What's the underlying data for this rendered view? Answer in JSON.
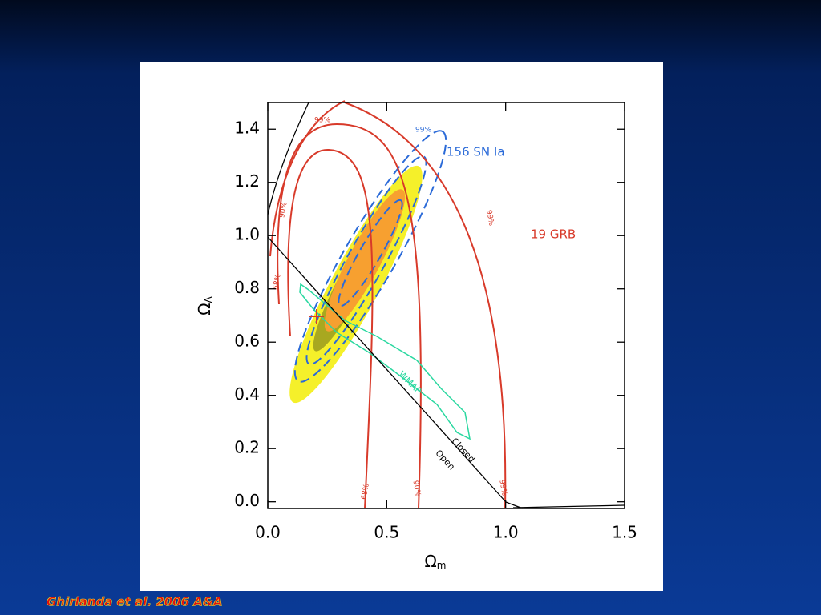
{
  "chart_data": {
    "type": "contour",
    "xlabel": {
      "symbol": "Ω",
      "subscript": "m"
    },
    "ylabel": {
      "symbol": "Ω",
      "subscript": "Λ"
    },
    "xlim": [
      0,
      1.5
    ],
    "ylim": [
      -0.025,
      1.5
    ],
    "xticks": [
      {
        "value": 0,
        "label": "0.0"
      },
      0.5,
      {
        "value": 1,
        "label": "1.0"
      },
      1.5
    ],
    "yticks": [
      {
        "value": 0,
        "label": "0.0"
      },
      0.2,
      0.4,
      0.6,
      0.8,
      {
        "value": 1,
        "label": "1.0"
      },
      1.2,
      1.4
    ],
    "annotations": [
      "156 SN Ia",
      "19 GRB",
      "WMAP",
      "Closed",
      "Open",
      "99%",
      "90%",
      "68%"
    ]
  },
  "caption": "Ghirlanda et al. 2006 A&A"
}
